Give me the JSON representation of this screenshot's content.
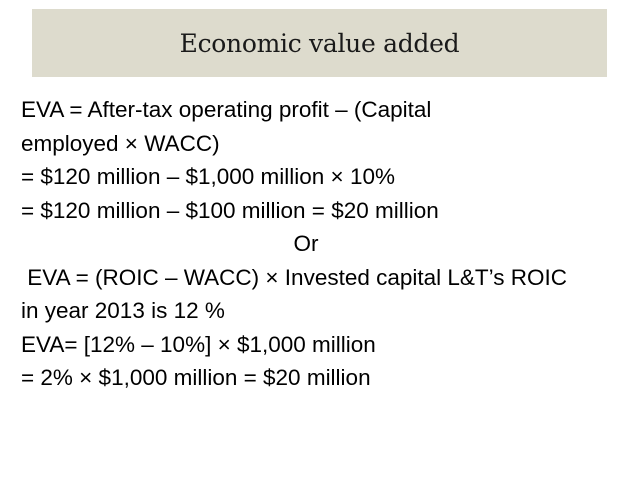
{
  "slide": {
    "title": "Economic value added",
    "lines": [
      "EVA = After-tax operating profit – (Capital",
      "employed × WACC)",
      "= $120 million – $1,000 million × 10%",
      "= $120 million – $100 million = $20 million",
      "Or",
      " EVA = (ROIC – WACC) × Invested capital L&T’s ROIC",
      "in year 2013 is 12 %",
      "EVA= [12% – 10%] × $1,000 million",
      "= 2% × $1,000 million = $20 million"
    ]
  },
  "colors": {
    "title_band": "#dddbcd",
    "text": "#000000"
  }
}
